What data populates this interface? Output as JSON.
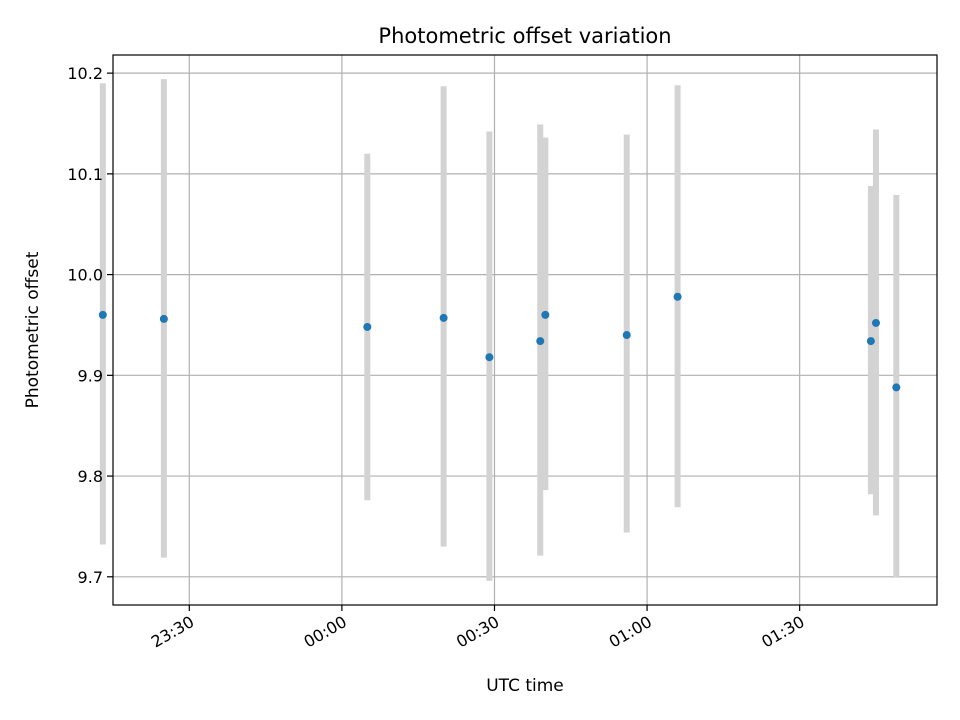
{
  "chart_data": {
    "type": "scatter",
    "title": "Photometric offset variation",
    "xlabel": "UTC time",
    "ylabel": "Photometric offset",
    "x_ticks": [
      "23:30",
      "00:00",
      "00:30",
      "01:00",
      "01:30"
    ],
    "y_ticks": [
      "9.7",
      "9.8",
      "9.9",
      "10.0",
      "10.1",
      "10.2"
    ],
    "ylim": [
      9.672,
      10.218
    ],
    "xlim": [
      "23:15",
      "01:57"
    ],
    "grid": true,
    "points": [
      {
        "x": "23:13",
        "y": 9.96,
        "ylow": 9.732,
        "yhigh": 10.19
      },
      {
        "x": "23:25",
        "y": 9.956,
        "ylow": 9.719,
        "yhigh": 10.194
      },
      {
        "x": "00:05",
        "y": 9.948,
        "ylow": 9.776,
        "yhigh": 10.12
      },
      {
        "x": "00:20",
        "y": 9.957,
        "ylow": 9.73,
        "yhigh": 10.187
      },
      {
        "x": "00:29",
        "y": 9.918,
        "ylow": 9.696,
        "yhigh": 10.142
      },
      {
        "x": "00:39",
        "y": 9.934,
        "ylow": 9.721,
        "yhigh": 10.149
      },
      {
        "x": "00:40",
        "y": 9.96,
        "ylow": 9.786,
        "yhigh": 10.136
      },
      {
        "x": "00:56",
        "y": 9.94,
        "ylow": 9.744,
        "yhigh": 10.139
      },
      {
        "x": "01:06",
        "y": 9.978,
        "ylow": 9.769,
        "yhigh": 10.188
      },
      {
        "x": "01:44",
        "y": 9.934,
        "ylow": 9.782,
        "yhigh": 10.088
      },
      {
        "x": "01:45",
        "y": 9.952,
        "ylow": 9.761,
        "yhigh": 10.144
      },
      {
        "x": "01:49",
        "y": 9.888,
        "ylow": 9.699,
        "yhigh": 10.079
      }
    ],
    "colors": {
      "point": "#1f77b4",
      "errorbar": "#d3d3d3",
      "grid": "#b0b0b0",
      "axes": "#000000"
    }
  }
}
